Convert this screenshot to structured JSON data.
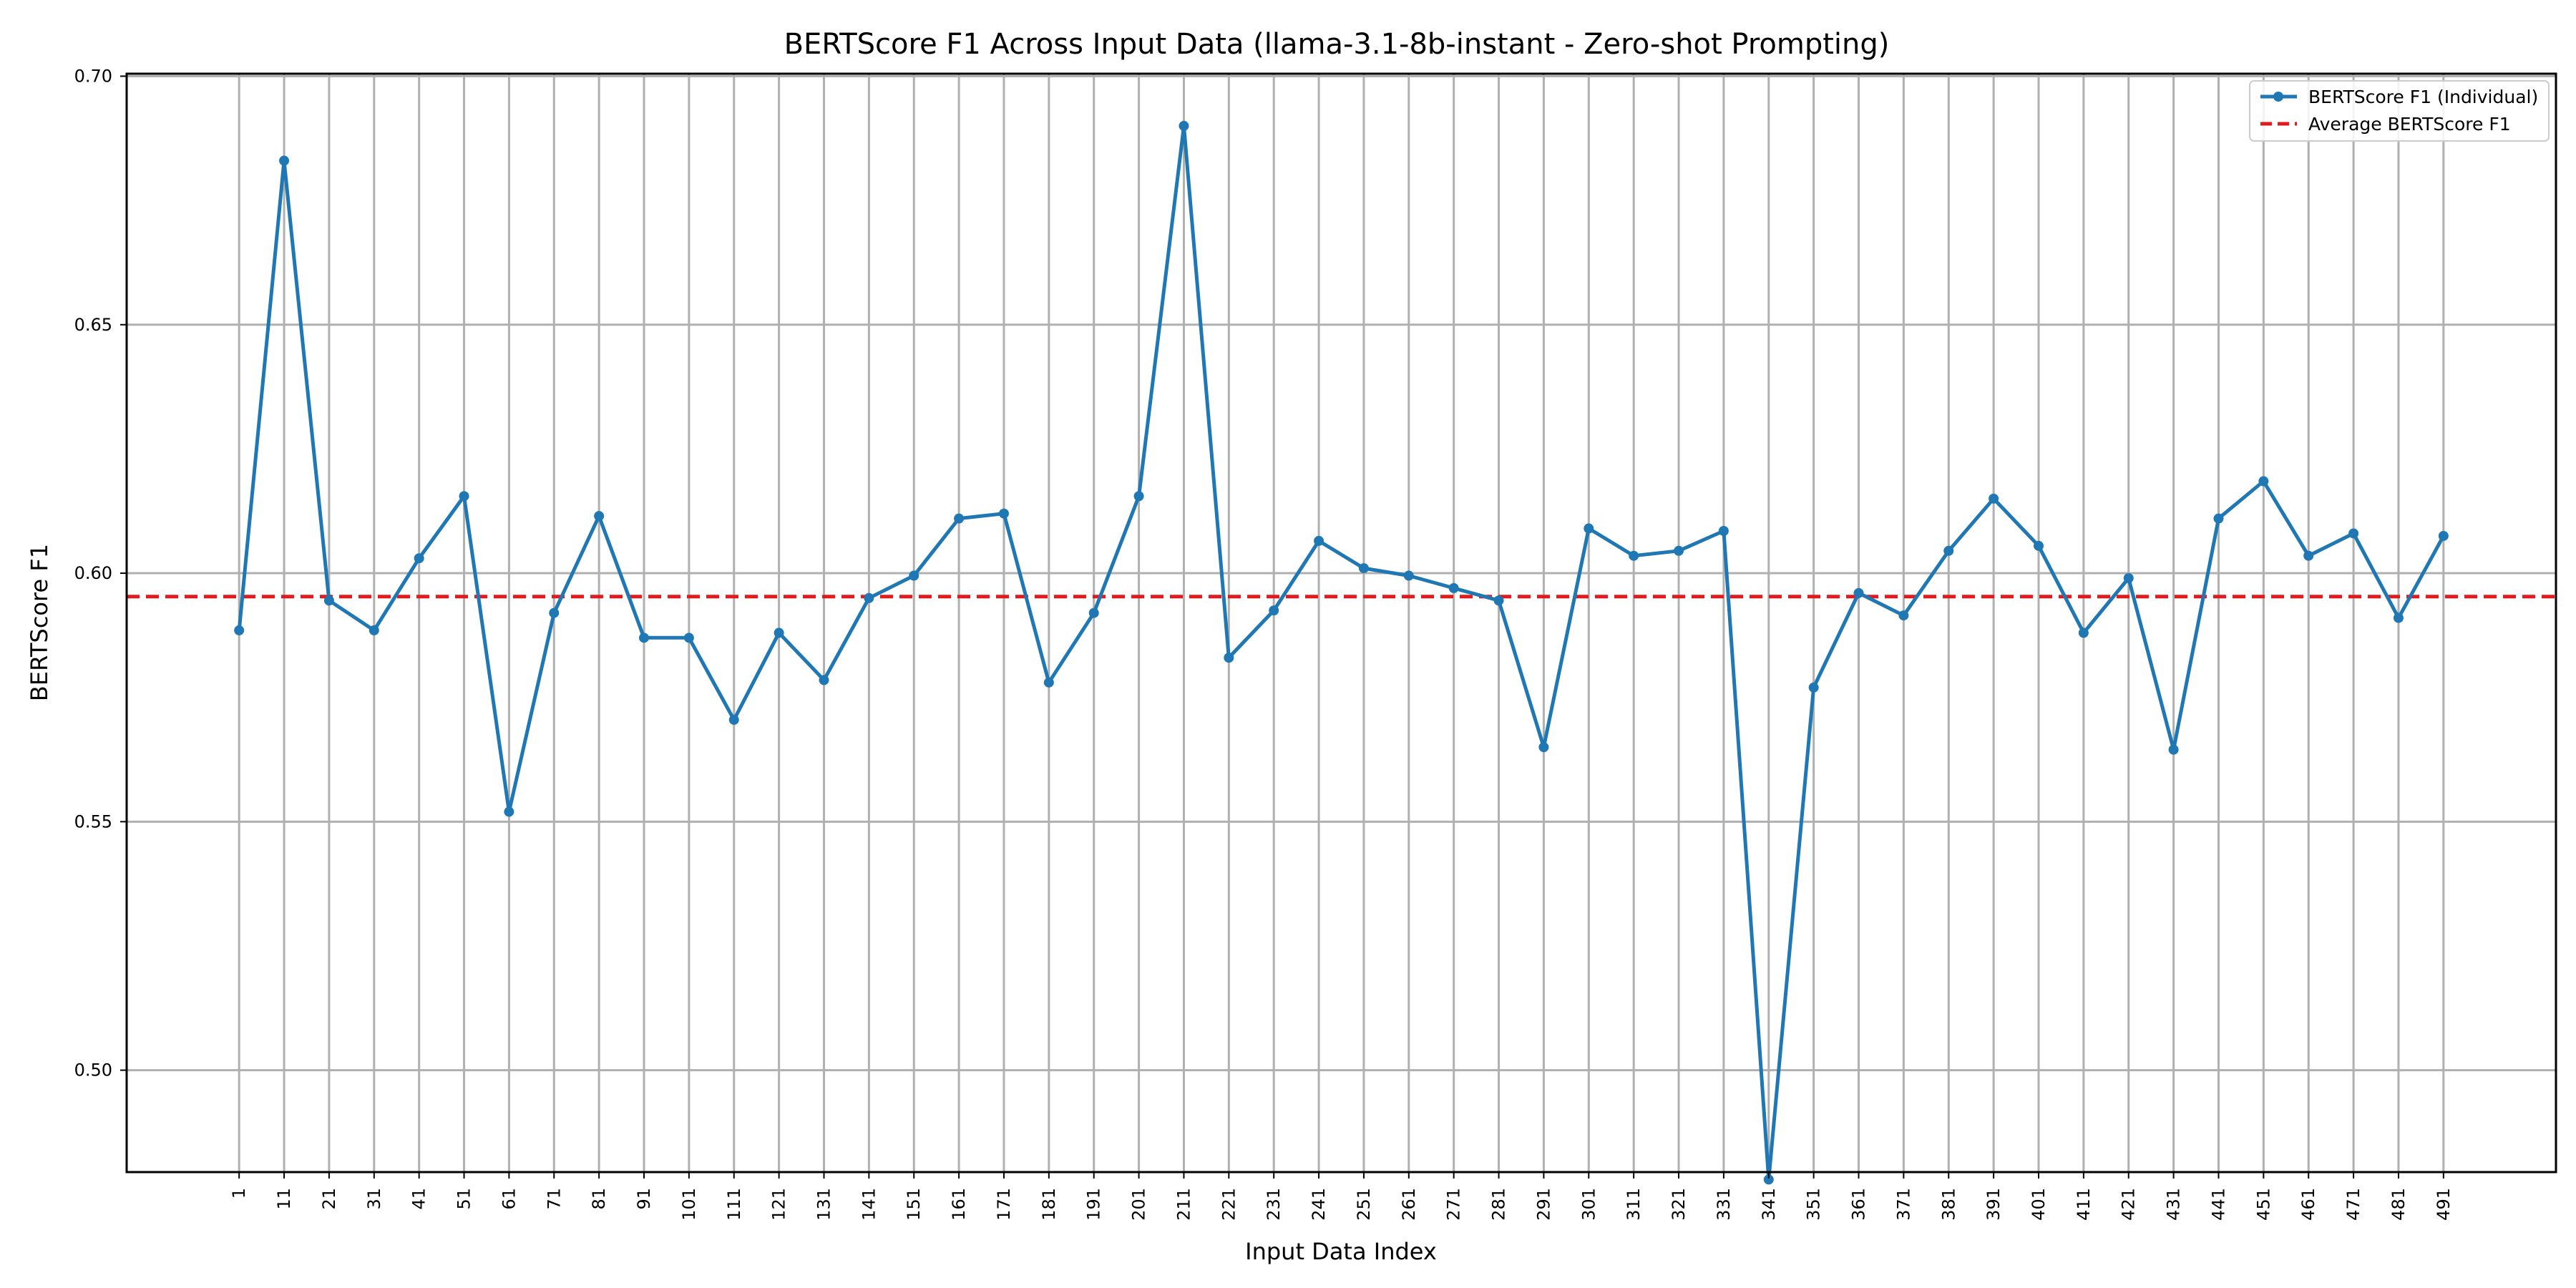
{
  "chart_data": {
    "type": "line",
    "title": "BERTScore F1 Across Input Data (llama-3.1-8b-instant - Zero-shot Prompting)",
    "xlabel": "Input Data Index",
    "ylabel": "BERTScore F1",
    "x": [
      1,
      11,
      21,
      31,
      41,
      51,
      61,
      71,
      81,
      91,
      101,
      111,
      121,
      131,
      141,
      151,
      161,
      171,
      181,
      191,
      201,
      211,
      221,
      231,
      241,
      251,
      261,
      271,
      281,
      291,
      301,
      311,
      321,
      331,
      341,
      351,
      361,
      371,
      381,
      391,
      401,
      411,
      421,
      431,
      441,
      451,
      461,
      471,
      481,
      491
    ],
    "xlim": [
      -24,
      516
    ],
    "ylim": [
      0.4795,
      0.7005
    ],
    "yticks": [
      0.5,
      0.55,
      0.6,
      0.65,
      0.7
    ],
    "ytick_labels": [
      "0.50",
      "0.55",
      "0.60",
      "0.65",
      "0.70"
    ],
    "grid": true,
    "legend_position": "top-right",
    "series": [
      {
        "name": "BERTScore F1 (Individual)",
        "style": "solid line with markers",
        "color": "#1f77b4",
        "values": [
          0.5885,
          0.683,
          0.5945,
          0.5885,
          0.603,
          0.6155,
          0.552,
          0.592,
          0.6115,
          0.587,
          0.587,
          0.5705,
          0.588,
          0.5785,
          0.595,
          0.5995,
          0.611,
          0.612,
          0.578,
          0.592,
          0.6155,
          0.69,
          0.583,
          0.5925,
          0.6065,
          0.601,
          0.5995,
          0.597,
          0.5945,
          0.565,
          0.609,
          0.6035,
          0.6045,
          0.6085,
          0.478,
          0.577,
          0.596,
          0.5915,
          0.6045,
          0.615,
          0.6055,
          0.588,
          0.599,
          0.5645,
          0.611,
          0.6185,
          0.6035,
          0.608,
          0.591,
          0.6075
        ]
      },
      {
        "name": "Average BERTScore F1",
        "style": "dashed",
        "color": "#e31a1c",
        "value": 0.5953
      }
    ]
  }
}
